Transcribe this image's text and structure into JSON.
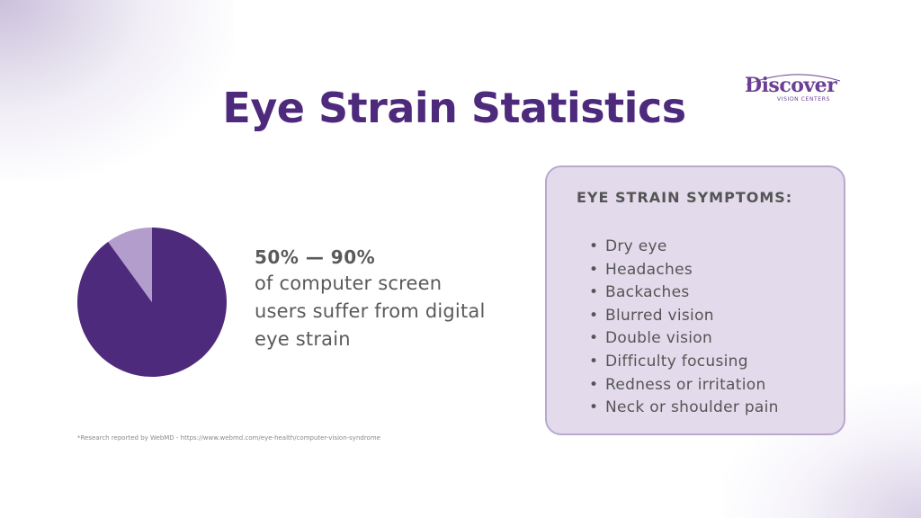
{
  "title": "Eye Strain Statistics",
  "logo": {
    "word": "Discover",
    "sub": "VISION CENTERS"
  },
  "stat": {
    "range": "50% — 90%",
    "description": "of computer screen users suffer from digital eye strain"
  },
  "pie": {
    "values": [
      90,
      10
    ],
    "colors": [
      "#4e2a7c",
      "#b39dcc"
    ]
  },
  "footnote": "*Research reported by WebMD - https://www.webmd.com/eye-health/computer-vision-syndrome",
  "symptoms": {
    "heading": "EYE STRAIN SYMPTOMS:",
    "items": [
      "Dry eye",
      "Headaches",
      "Backaches",
      "Blurred vision",
      "Double vision",
      "Difficulty focusing",
      "Redness or irritation",
      "Neck or shoulder pain"
    ]
  }
}
